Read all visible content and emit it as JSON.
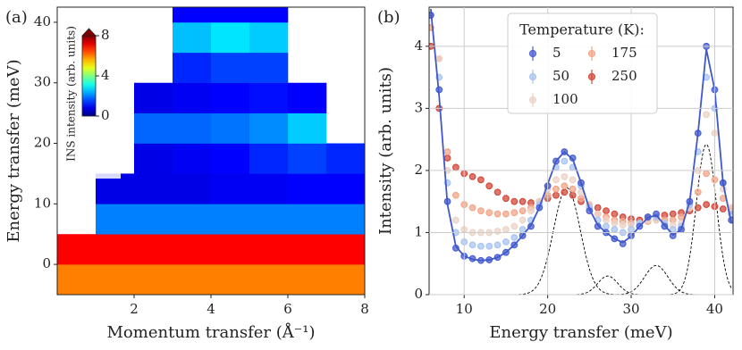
{
  "chart_data": [
    {
      "type": "heatmap",
      "panel_label": "(a)",
      "xlabel": "Momentum transfer (Å⁻¹)",
      "ylabel": "Energy transfer (meV)",
      "xlim": [
        0,
        8
      ],
      "ylim": [
        -5,
        42.5
      ],
      "xticks": [
        2,
        4,
        6,
        8
      ],
      "yticks": [
        0,
        10,
        20,
        30,
        40
      ],
      "x_edges": [
        0,
        1,
        2,
        3,
        4,
        5,
        6,
        7,
        8
      ],
      "y_edges": [
        -5,
        0,
        5,
        10,
        15,
        20,
        25,
        30,
        35,
        40,
        42.5
      ],
      "z": [
        [
          6,
          6,
          6,
          6,
          6,
          6,
          6,
          6
        ],
        [
          7,
          7,
          7,
          7,
          7,
          7,
          7,
          7
        ],
        [
          null,
          2,
          2,
          2,
          2,
          2,
          2,
          2
        ],
        [
          null,
          0.8,
          0.8,
          0.8,
          0.9,
          0.9,
          1,
          1
        ],
        [
          null,
          null,
          0.8,
          0.9,
          1,
          1.3,
          1.5,
          1.3
        ],
        [
          null,
          null,
          1.8,
          1.8,
          1.9,
          2.1,
          2.6,
          null
        ],
        [
          null,
          null,
          0.8,
          0.9,
          1,
          1.1,
          1,
          null
        ],
        [
          null,
          null,
          null,
          1.3,
          1.5,
          1.5,
          null,
          null
        ],
        [
          null,
          null,
          null,
          2.5,
          2.8,
          2.6,
          null,
          null
        ],
        [
          null,
          null,
          null,
          1,
          1,
          1,
          null,
          null
        ]
      ],
      "colorbar_label": "INS intensity (arb. units)",
      "clim": [
        0,
        8
      ],
      "colorbar_ticks": [
        0,
        4,
        8
      ],
      "colormap": "jet"
    },
    {
      "type": "scatter",
      "panel_label": "(b)",
      "xlabel": "Energy transfer (meV)",
      "ylabel": "Intensity (arb. units)",
      "xlim": [
        5.8,
        42.2
      ],
      "ylim": [
        0,
        4.63
      ],
      "xticks": [
        10,
        20,
        30,
        40
      ],
      "yticks": [
        0,
        1,
        2,
        3,
        4
      ],
      "grid": true,
      "legend_title": "Temperature (K):",
      "x": [
        6,
        7,
        8,
        9,
        10,
        11,
        12,
        13,
        14,
        15,
        16,
        17,
        18,
        19,
        20,
        21,
        22,
        23,
        24,
        25,
        26,
        27,
        28,
        29,
        30,
        31,
        32,
        33,
        34,
        35,
        36,
        37,
        38,
        39,
        40,
        41,
        42
      ],
      "series": [
        {
          "name": "5",
          "color": "#4a5fd0",
          "values": [
            4.5,
            3.3,
            1.5,
            0.75,
            0.62,
            0.58,
            0.55,
            0.56,
            0.6,
            0.68,
            0.8,
            0.95,
            1.1,
            1.4,
            1.75,
            2.15,
            2.3,
            2.2,
            1.8,
            1.35,
            1.1,
            1.0,
            0.9,
            0.82,
            0.95,
            1.1,
            1.25,
            1.3,
            1.1,
            0.95,
            1.05,
            1.5,
            2.6,
            4.0,
            3.3,
            1.8,
            1.2
          ]
        },
        {
          "name": "50",
          "color": "#a9c4f2",
          "values": [
            4.5,
            3.5,
            1.8,
            1.0,
            0.85,
            0.8,
            0.78,
            0.78,
            0.8,
            0.85,
            0.92,
            1.05,
            1.2,
            1.45,
            1.75,
            2.05,
            2.15,
            2.05,
            1.75,
            1.4,
            1.2,
            1.1,
            1.05,
            1.0,
            1.05,
            1.15,
            1.25,
            1.25,
            1.15,
            1.05,
            1.1,
            1.45,
            2.3,
            3.5,
            3.0,
            1.8,
            1.3
          ]
        },
        {
          "name": "100",
          "color": "#ecd3c6",
          "values": [
            4.5,
            3.8,
            2.0,
            1.2,
            1.05,
            1.0,
            1.0,
            1.0,
            1.02,
            1.05,
            1.1,
            1.2,
            1.35,
            1.5,
            1.7,
            1.85,
            1.9,
            1.85,
            1.65,
            1.45,
            1.3,
            1.2,
            1.15,
            1.12,
            1.12,
            1.15,
            1.2,
            1.2,
            1.15,
            1.12,
            1.15,
            1.4,
            2.0,
            2.9,
            2.6,
            1.7,
            1.4
          ]
        },
        {
          "name": "175",
          "color": "#f3a589",
          "values": [
            4.3,
            3.8,
            2.3,
            1.6,
            1.45,
            1.4,
            1.35,
            1.32,
            1.3,
            1.3,
            1.32,
            1.35,
            1.4,
            1.5,
            1.6,
            1.7,
            1.75,
            1.7,
            1.55,
            1.4,
            1.3,
            1.25,
            1.2,
            1.18,
            1.15,
            1.15,
            1.18,
            1.2,
            1.2,
            1.2,
            1.25,
            1.4,
            1.65,
            1.95,
            1.85,
            1.55,
            1.4
          ]
        },
        {
          "name": "250",
          "color": "#d4493b",
          "values": [
            4.0,
            3.0,
            2.2,
            2.05,
            1.95,
            1.9,
            1.85,
            1.75,
            1.65,
            1.55,
            1.5,
            1.5,
            1.48,
            1.5,
            1.55,
            1.6,
            1.65,
            1.6,
            1.5,
            1.45,
            1.4,
            1.35,
            1.3,
            1.25,
            1.22,
            1.2,
            1.22,
            1.25,
            1.28,
            1.3,
            1.32,
            1.35,
            1.4,
            1.45,
            1.42,
            1.38,
            1.35
          ]
        }
      ],
      "fit": {
        "color": "#3f58cc",
        "values": [
          4.6,
          3.2,
          1.45,
          0.78,
          0.62,
          0.57,
          0.55,
          0.56,
          0.6,
          0.68,
          0.8,
          0.95,
          1.12,
          1.4,
          1.78,
          2.15,
          2.3,
          2.18,
          1.8,
          1.38,
          1.12,
          1.0,
          0.9,
          0.84,
          0.94,
          1.1,
          1.24,
          1.28,
          1.12,
          0.96,
          1.05,
          1.5,
          2.6,
          3.95,
          3.3,
          1.8,
          1.15
        ]
      },
      "components": [
        {
          "center": 22.3,
          "amplitude": 1.72,
          "width": 1.6
        },
        {
          "center": 27.2,
          "amplitude": 0.3,
          "width": 1.2
        },
        {
          "center": 33,
          "amplitude": 0.47,
          "width": 1.4
        },
        {
          "center": 39,
          "amplitude": 2.42,
          "width": 1.2
        }
      ],
      "component_color": "#000000"
    }
  ]
}
